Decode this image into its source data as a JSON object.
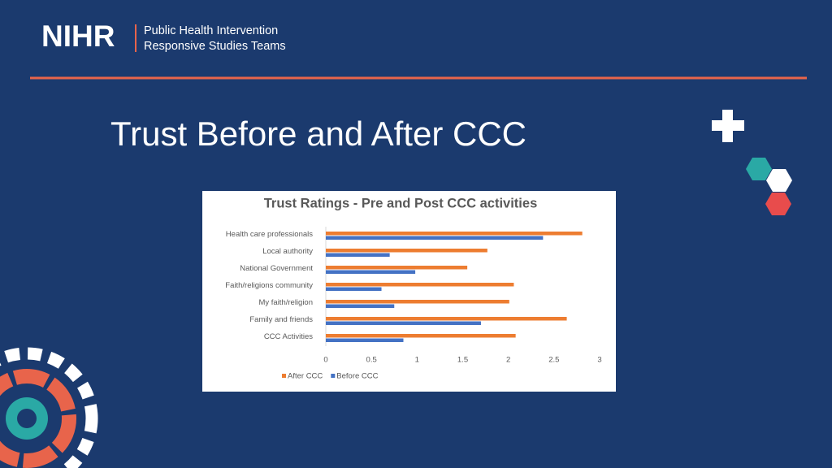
{
  "logo": "NIHR",
  "organisation": [
    "Public Health Intervention",
    "Responsive Studies Teams"
  ],
  "slide_title": "Trust Before and After CCC",
  "chart_data": {
    "type": "hbar",
    "title": "Trust Ratings - Pre and Post CCC activities",
    "categories": [
      "Health care professionals",
      "Local authority",
      "National Government",
      "Faith/religions community",
      "My faith/religion",
      "Family and friends",
      "CCC Activities"
    ],
    "series": [
      {
        "name": "After CCC",
        "color": "#ed7d31",
        "values": [
          2.81,
          1.77,
          1.55,
          2.06,
          2.01,
          2.64,
          2.08
        ]
      },
      {
        "name": "Before CCC",
        "color": "#4472c4",
        "values": [
          2.38,
          0.7,
          0.98,
          0.61,
          0.75,
          1.7,
          0.85
        ]
      }
    ],
    "xlim": [
      0,
      3
    ],
    "xticks": [
      0,
      0.5,
      1,
      1.5,
      2,
      2.5,
      3
    ],
    "grid": false,
    "legend": "bottom"
  }
}
